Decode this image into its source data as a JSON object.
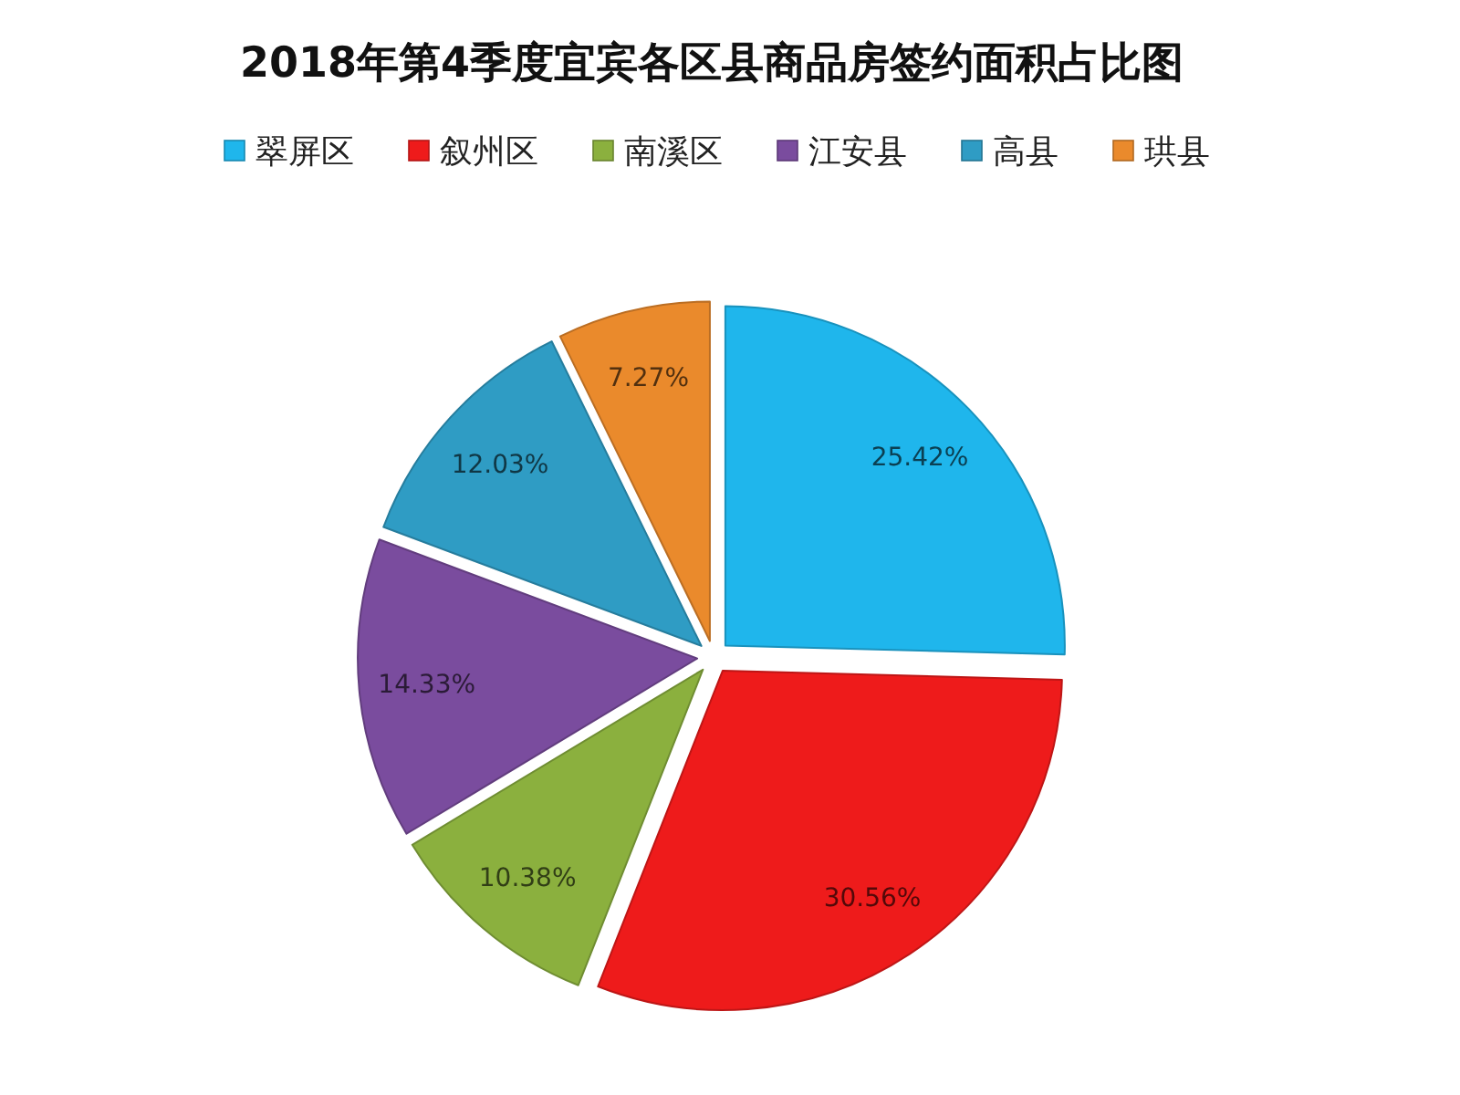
{
  "chart_data": {
    "type": "pie",
    "title": "2018年第4季度宜宾各区县商品房签约面积占比图",
    "categories": [
      "翠屏区",
      "叙州区",
      "南溪区",
      "江安县",
      "高县",
      "珙县"
    ],
    "values": [
      25.42,
      30.56,
      10.38,
      14.33,
      12.03,
      7.27
    ],
    "colors": [
      "#1fb6ec",
      "#ee1b1b",
      "#8bb03e",
      "#7a4c9e",
      "#2f9cc4",
      "#ea8a2c"
    ],
    "value_labels": [
      "25.42%",
      "30.56%",
      "10.38%",
      "14.33%",
      "12.03%",
      "7.27%"
    ],
    "legend": "top"
  }
}
